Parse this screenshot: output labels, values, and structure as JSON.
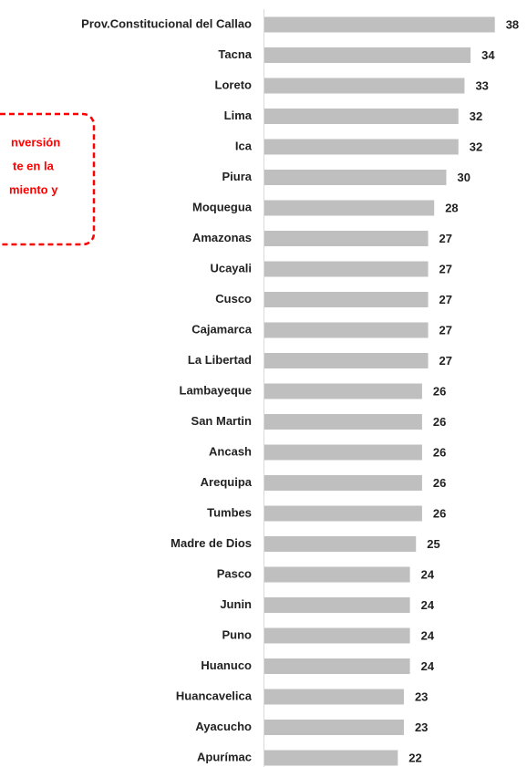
{
  "chart_data": {
    "type": "barh",
    "categories": [
      "Prov.Constitucional del Callao",
      "Tacna",
      "Loreto",
      "Lima",
      "Ica",
      "Piura",
      "Moquegua",
      "Amazonas",
      "Ucayali",
      "Cusco",
      "Cajamarca",
      "La Libertad",
      "Lambayeque",
      "San Martin",
      "Ancash",
      "Arequipa",
      "Tumbes",
      "Madre de Dios",
      "Pasco",
      "Junin",
      "Puno",
      "Huanuco",
      "Huancavelica",
      "Ayacucho",
      "Apurímac"
    ],
    "values": [
      38,
      34,
      33,
      32,
      32,
      30,
      28,
      27,
      27,
      27,
      27,
      27,
      26,
      26,
      26,
      26,
      26,
      25,
      24,
      24,
      24,
      24,
      23,
      23,
      22
    ],
    "color": "#bfbfbf",
    "xlim": [
      0,
      40
    ],
    "annotation_lines": [
      "nversión",
      "te en la",
      "miento y"
    ]
  }
}
